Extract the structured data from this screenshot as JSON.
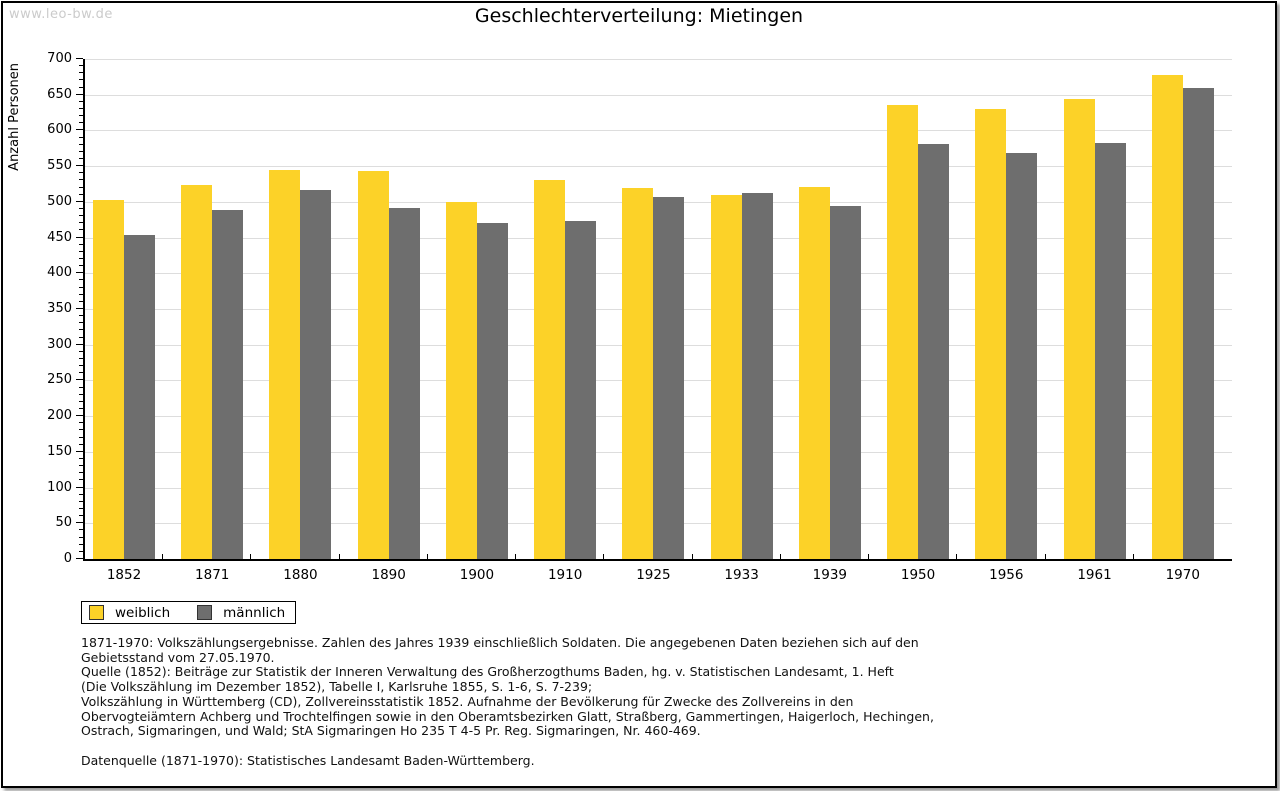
{
  "watermark": "www.leo-bw.de",
  "title": "Geschlechterverteilung: Mietingen",
  "chart_data": {
    "type": "bar",
    "title": "Geschlechterverteilung: Mietingen",
    "xlabel": "",
    "ylabel": "Anzahl Personen",
    "ylim": [
      0,
      700
    ],
    "y_major_step": 50,
    "y_minor_step": 10,
    "grid": true,
    "legend_position": "bottom-left",
    "categories": [
      "1852",
      "1871",
      "1880",
      "1890",
      "1900",
      "1910",
      "1925",
      "1933",
      "1939",
      "1950",
      "1956",
      "1961",
      "1970"
    ],
    "series": [
      {
        "name": "weiblich",
        "color": "#FCD228",
        "values": [
          503,
          523,
          545,
          543,
          500,
          531,
          520,
          510,
          521,
          636,
          630,
          644,
          678
        ]
      },
      {
        "name": "männlich",
        "color": "#6E6E6E",
        "values": [
          454,
          488,
          516,
          491,
          470,
          473,
          507,
          512,
          494,
          581,
          569,
          583,
          659
        ]
      }
    ]
  },
  "colors": {
    "gridline": "#dddddd",
    "axis": "#000000",
    "watermark": "#cbcbcb",
    "page_background": "#ffffff"
  },
  "legend": {
    "items": [
      {
        "label": "weiblich",
        "color": "#FCD228"
      },
      {
        "label": "männlich",
        "color": "#6E6E6E"
      }
    ]
  },
  "footer": {
    "note_lines": [
      "1871-1970: Volkszählungsergebnisse. Zahlen des Jahres 1939 einschließlich Soldaten. Die angegebenen Daten beziehen sich auf den",
      "Gebietsstand vom 27.05.1970.",
      "Quelle (1852): Beiträge zur Statistik der Inneren Verwaltung des Großherzogthums Baden, hg. v. Statistischen Landesamt, 1. Heft",
      "(Die Volkszählung im Dezember 1852), Tabelle I, Karlsruhe 1855, S. 1-6, S. 7-239;",
      "Volkszählung in Württemberg (CD), Zollvereinsstatistik 1852. Aufnahme der Bevölkerung für Zwecke des Zollvereins in den",
      "Obervogteiämtern Achberg und Trochtelfingen sowie in den Oberamtsbezirken Glatt, Straßberg, Gammertingen, Haigerloch, Hechingen,",
      "Ostrach, Sigmaringen, und Wald; StA Sigmaringen Ho 235 T 4-5 Pr. Reg. Sigmaringen, Nr. 460-469."
    ],
    "datasource": "Datenquelle (1871-1970): Statistisches Landesamt Baden-Württemberg."
  }
}
